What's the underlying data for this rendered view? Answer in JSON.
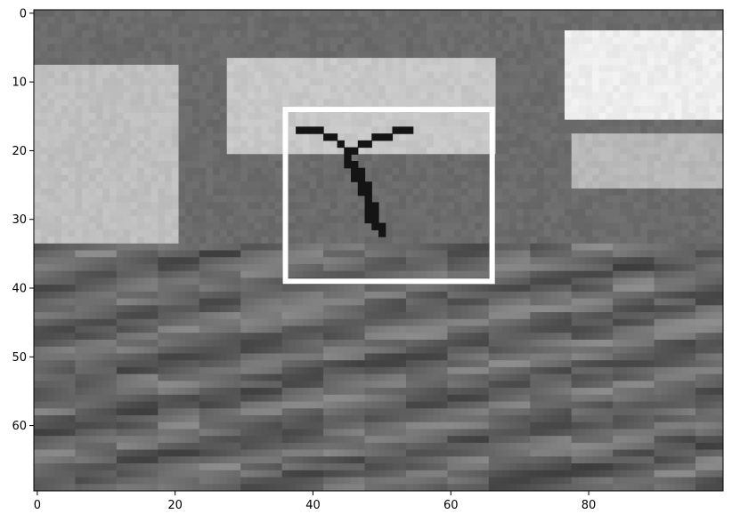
{
  "chart_data": {
    "type": "heatmap",
    "title": "",
    "xlabel": "",
    "ylabel": "",
    "colormap": "gray",
    "image_size": {
      "width": 100,
      "height": 70
    },
    "xlim": [
      -0.5,
      99.5
    ],
    "ylim": [
      69.5,
      -0.5
    ],
    "x_ticks": [
      0,
      20,
      40,
      60,
      80
    ],
    "x_tick_labels": [
      "0",
      "20",
      "40",
      "60",
      "80"
    ],
    "y_ticks": [
      0,
      10,
      20,
      30,
      40,
      50,
      60
    ],
    "y_tick_labels": [
      "0",
      "10",
      "20",
      "30",
      "40",
      "50",
      "60"
    ],
    "grid": false,
    "annotations": [
      {
        "type": "rectangle",
        "x0": 36,
        "y0": 14,
        "x1": 66,
        "y1": 39,
        "color": "#ffffff"
      }
    ],
    "regions": [
      {
        "label": "sky",
        "x0": 0,
        "y0": 0,
        "x1": 100,
        "y1": 34,
        "value": 0.42
      },
      {
        "label": "cloud-top-center",
        "x0": 28,
        "y0": 7,
        "x1": 67,
        "y1": 21,
        "value": 0.78
      },
      {
        "label": "cloud-left",
        "x0": 0,
        "y0": 8,
        "x1": 21,
        "y1": 34,
        "value": 0.75
      },
      {
        "label": "cloud-right-bright",
        "x0": 77,
        "y0": 3,
        "x1": 100,
        "y1": 16,
        "value": 0.93
      },
      {
        "label": "cloud-right-lower",
        "x0": 78,
        "y0": 18,
        "x1": 100,
        "y1": 26,
        "value": 0.72
      },
      {
        "label": "sea",
        "x0": 0,
        "y0": 34,
        "x1": 100,
        "y1": 70,
        "value": 0.4
      }
    ],
    "object": {
      "label": "bird",
      "x0": 38,
      "y0": 16,
      "x1": 56,
      "y1": 33,
      "value": 0.08
    }
  }
}
